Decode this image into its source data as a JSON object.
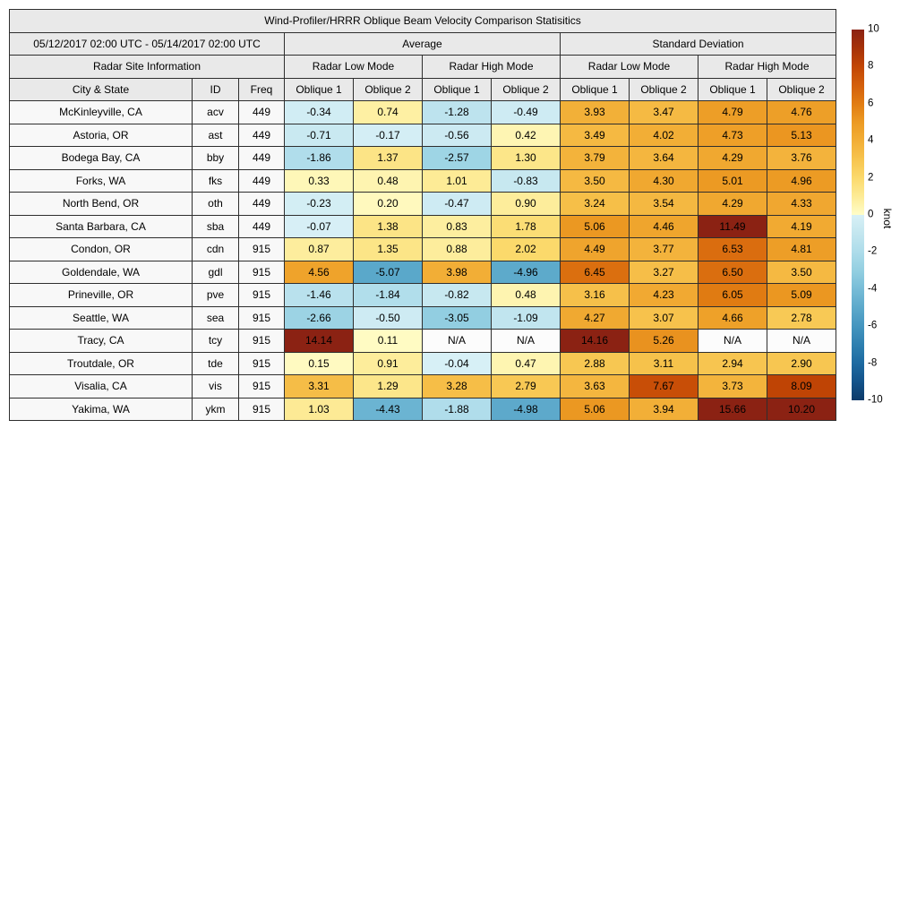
{
  "chart_data": {
    "type": "table",
    "title": "Wind-Profiler/HRRR Oblique Beam Velocity Comparison Statisitics",
    "period": "05/12/2017 02:00 UTC - 05/14/2017 02:00 UTC",
    "na_text": "N/A",
    "headers": {
      "average": "Average",
      "standard_deviation": "Standard Deviation",
      "site_info": "Radar Site Information",
      "low_mode": "Radar Low Mode",
      "high_mode": "Radar High Mode",
      "city": "City & State",
      "id": "ID",
      "freq": "Freq",
      "oblique1": "Oblique 1",
      "oblique2": "Oblique 2"
    },
    "value_columns": [
      "Avg Low Oblique 1",
      "Avg Low Oblique 2",
      "Avg High Oblique 1",
      "Avg High Oblique 2",
      "Std Low Oblique 1",
      "Std Low Oblique 2",
      "Std High Oblique 1",
      "Std High Oblique 2"
    ],
    "rows": [
      {
        "city": "McKinleyville, CA",
        "id": "acv",
        "freq": "449",
        "values": [
          -0.34,
          0.74,
          -1.28,
          -0.49,
          3.93,
          3.47,
          4.79,
          4.76
        ]
      },
      {
        "city": "Astoria, OR",
        "id": "ast",
        "freq": "449",
        "values": [
          -0.71,
          -0.17,
          -0.56,
          0.42,
          3.49,
          4.02,
          4.73,
          5.13
        ]
      },
      {
        "city": "Bodega Bay, CA",
        "id": "bby",
        "freq": "449",
        "values": [
          -1.86,
          1.37,
          -2.57,
          1.3,
          3.79,
          3.64,
          4.29,
          3.76
        ]
      },
      {
        "city": "Forks, WA",
        "id": "fks",
        "freq": "449",
        "values": [
          0.33,
          0.48,
          1.01,
          -0.83,
          3.5,
          4.3,
          5.01,
          4.96
        ]
      },
      {
        "city": "North Bend, OR",
        "id": "oth",
        "freq": "449",
        "values": [
          -0.23,
          0.2,
          -0.47,
          0.9,
          3.24,
          3.54,
          4.29,
          4.33
        ]
      },
      {
        "city": "Santa Barbara, CA",
        "id": "sba",
        "freq": "449",
        "values": [
          -0.07,
          1.38,
          0.83,
          1.78,
          5.06,
          4.46,
          11.49,
          4.19
        ]
      },
      {
        "city": "Condon, OR",
        "id": "cdn",
        "freq": "915",
        "values": [
          0.87,
          1.35,
          0.88,
          2.02,
          4.49,
          3.77,
          6.53,
          4.81
        ]
      },
      {
        "city": "Goldendale, WA",
        "id": "gdl",
        "freq": "915",
        "values": [
          4.56,
          -5.07,
          3.98,
          -4.96,
          6.45,
          3.27,
          6.5,
          3.5
        ]
      },
      {
        "city": "Prineville, OR",
        "id": "pve",
        "freq": "915",
        "values": [
          -1.46,
          -1.84,
          -0.82,
          0.48,
          3.16,
          4.23,
          6.05,
          5.09
        ]
      },
      {
        "city": "Seattle, WA",
        "id": "sea",
        "freq": "915",
        "values": [
          -2.66,
          -0.5,
          -3.05,
          -1.09,
          4.27,
          3.07,
          4.66,
          2.78
        ]
      },
      {
        "city": "Tracy, CA",
        "id": "tcy",
        "freq": "915",
        "values": [
          14.14,
          0.11,
          "N/A",
          "N/A",
          14.16,
          5.26,
          "N/A",
          "N/A"
        ]
      },
      {
        "city": "Troutdale, OR",
        "id": "tde",
        "freq": "915",
        "values": [
          0.15,
          0.91,
          -0.04,
          0.47,
          2.88,
          3.11,
          2.94,
          2.9
        ]
      },
      {
        "city": "Visalia, CA",
        "id": "vis",
        "freq": "915",
        "values": [
          3.31,
          1.29,
          3.28,
          2.79,
          3.63,
          7.67,
          3.73,
          8.09
        ]
      },
      {
        "city": "Yakima, WA",
        "id": "ykm",
        "freq": "915",
        "values": [
          1.03,
          -4.43,
          -1.88,
          -4.98,
          5.06,
          3.94,
          15.66,
          10.2
        ]
      }
    ],
    "colorbar": {
      "label": "knot",
      "min": -10,
      "max": 10,
      "ticks": [
        10,
        8,
        6,
        4,
        2,
        0,
        -2,
        -4,
        -6,
        -8,
        -10
      ]
    }
  },
  "colors": {
    "header_bg": "#e9e9e9",
    "site_bg": "#f8f8f8",
    "na_bg": "#fcfcfc",
    "border": "#2e2e2e",
    "positive_stops": [
      "#fffdc8",
      "#fdeb96",
      "#fbd96c",
      "#f7c44e",
      "#f2ae36",
      "#ec9a23",
      "#e17c12",
      "#d35f0c",
      "#c24605",
      "#a63208",
      "#8b2213"
    ],
    "negative_stops": [
      "#d8f0f6",
      "#c3e6ef",
      "#addcea",
      "#93cfe1",
      "#77bcd7",
      "#5ca9cb",
      "#4495bf",
      "#2e80b0",
      "#1d6aa1",
      "#13538a",
      "#0d3a69"
    ]
  }
}
